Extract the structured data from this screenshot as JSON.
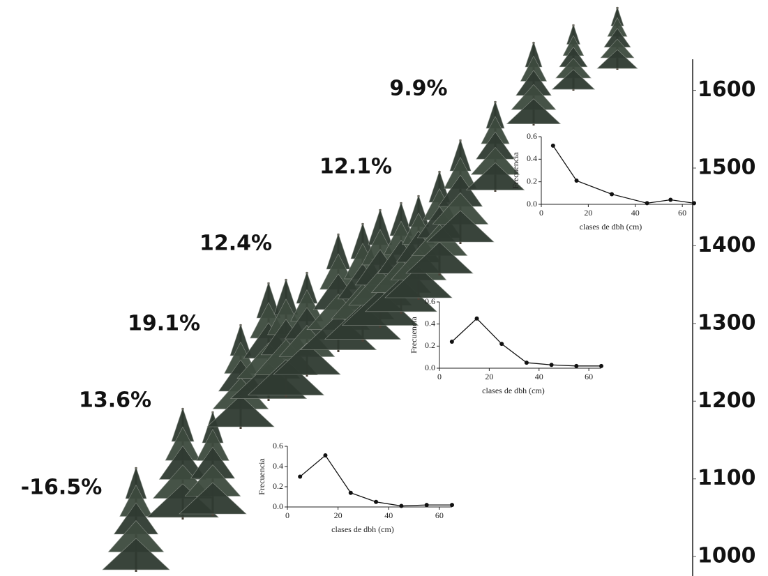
{
  "percent_labels": [
    "9.9%",
    "12.1%",
    "12.4%",
    "19.1%",
    "13.6%",
    "-16.5%"
  ],
  "elevation_axis": {
    "ylim": [
      975,
      1640
    ],
    "yticks": [
      1000,
      1100,
      1200,
      1300,
      1400,
      1500,
      1600
    ]
  },
  "chart_data": [
    {
      "type": "line",
      "xlabel": "clases de dbh (cm)",
      "ylabel": "Frecuencia",
      "color": "#111111",
      "x": [
        5,
        15,
        25,
        35,
        45,
        55,
        65
      ],
      "values": [
        0.3,
        0.51,
        0.14,
        0.05,
        0.01,
        0.02,
        0.02
      ],
      "xlim": [
        0,
        65
      ],
      "ylim": [
        0,
        0.6
      ],
      "xticks": [
        0,
        20,
        40,
        60
      ],
      "yticks": [
        {
          "value": 0,
          "label": "0.0"
        },
        0.2,
        0.4,
        0.6
      ]
    },
    {
      "type": "line",
      "xlabel": "clases de dbh (cm)",
      "ylabel": "Frecuencia",
      "color": "#111111",
      "x": [
        5,
        15,
        25,
        35,
        45,
        55,
        65
      ],
      "values": [
        0.24,
        0.45,
        0.22,
        0.05,
        0.03,
        0.02,
        0.02
      ],
      "xlim": [
        0,
        65
      ],
      "ylim": [
        0,
        0.6
      ],
      "xticks": [
        0,
        20,
        40,
        60
      ],
      "yticks": [
        {
          "value": 0,
          "label": "0.0"
        },
        0.2,
        0.4,
        0.6
      ]
    },
    {
      "type": "line",
      "xlabel": "clases de dbh (cm)",
      "ylabel": "Frecuencia",
      "color": "#111111",
      "x": [
        5,
        15,
        30,
        45,
        55,
        65
      ],
      "values": [
        0.52,
        0.21,
        0.09,
        0.01,
        0.04,
        0.01
      ],
      "xlim": [
        0,
        65
      ],
      "ylim": [
        0,
        0.6
      ],
      "xticks": [
        0,
        20,
        40,
        60
      ],
      "yticks": [
        {
          "value": 0,
          "label": "0.0"
        },
        0.2,
        0.4,
        0.6
      ]
    }
  ]
}
